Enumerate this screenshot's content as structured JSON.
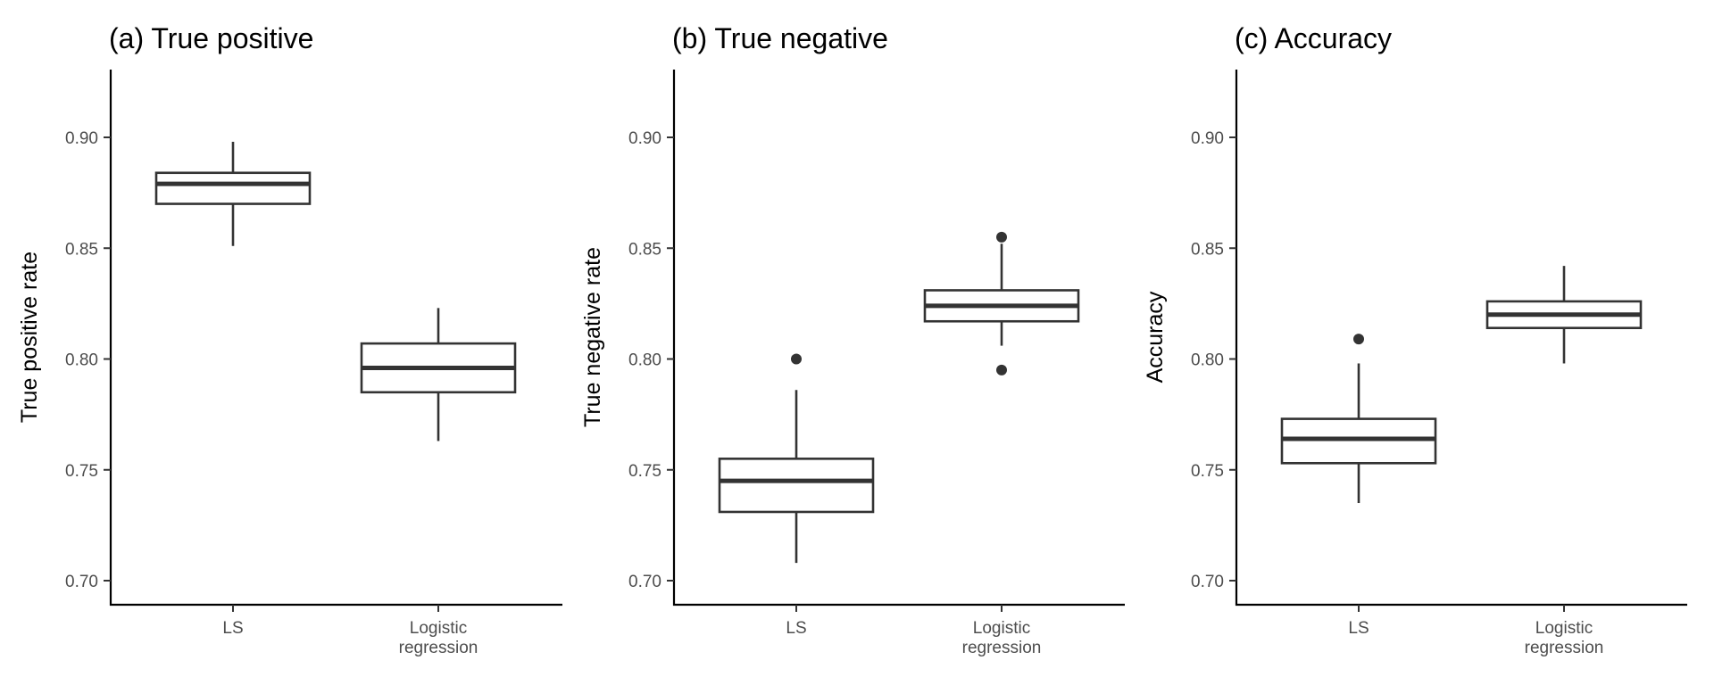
{
  "chart_data": [
    {
      "type": "boxplot",
      "title": "(a) True positive",
      "xlabel": "",
      "ylabel": "True positive rate",
      "ylim": [
        0.69,
        0.93
      ],
      "yticks": [
        0.7,
        0.75,
        0.8,
        0.85,
        0.9
      ],
      "ytick_labels": [
        "0.70",
        "0.75",
        "0.80",
        "0.85",
        "0.90"
      ],
      "categories": [
        "LS",
        "Logistic\nregression"
      ],
      "boxes": [
        {
          "category": "LS",
          "whisker_low": 0.851,
          "q1": 0.87,
          "median": 0.879,
          "q3": 0.884,
          "whisker_high": 0.898,
          "outliers": []
        },
        {
          "category": "Logistic\nregression",
          "whisker_low": 0.763,
          "q1": 0.785,
          "median": 0.796,
          "q3": 0.807,
          "whisker_high": 0.823,
          "outliers": []
        }
      ]
    },
    {
      "type": "boxplot",
      "title": "(b) True negative",
      "xlabel": "",
      "ylabel": "True negative rate",
      "ylim": [
        0.69,
        0.93
      ],
      "yticks": [
        0.7,
        0.75,
        0.8,
        0.85,
        0.9
      ],
      "ytick_labels": [
        "0.70",
        "0.75",
        "0.80",
        "0.85",
        "0.90"
      ],
      "categories": [
        "LS",
        "Logistic\nregression"
      ],
      "boxes": [
        {
          "category": "LS",
          "whisker_low": 0.708,
          "q1": 0.731,
          "median": 0.745,
          "q3": 0.755,
          "whisker_high": 0.786,
          "outliers": [
            0.8
          ]
        },
        {
          "category": "Logistic\nregression",
          "whisker_low": 0.806,
          "q1": 0.817,
          "median": 0.824,
          "q3": 0.831,
          "whisker_high": 0.852,
          "outliers": [
            0.855,
            0.795
          ]
        }
      ]
    },
    {
      "type": "boxplot",
      "title": "(c) Accuracy",
      "xlabel": "",
      "ylabel": "Accuracy",
      "ylim": [
        0.69,
        0.93
      ],
      "yticks": [
        0.7,
        0.75,
        0.8,
        0.85,
        0.9
      ],
      "ytick_labels": [
        "0.70",
        "0.75",
        "0.80",
        "0.85",
        "0.90"
      ],
      "categories": [
        "LS",
        "Logistic\nregression"
      ],
      "boxes": [
        {
          "category": "LS",
          "whisker_low": 0.735,
          "q1": 0.753,
          "median": 0.764,
          "q3": 0.773,
          "whisker_high": 0.798,
          "outliers": [
            0.809
          ]
        },
        {
          "category": "Logistic\nregression",
          "whisker_low": 0.798,
          "q1": 0.814,
          "median": 0.82,
          "q3": 0.826,
          "whisker_high": 0.842,
          "outliers": []
        }
      ]
    }
  ]
}
